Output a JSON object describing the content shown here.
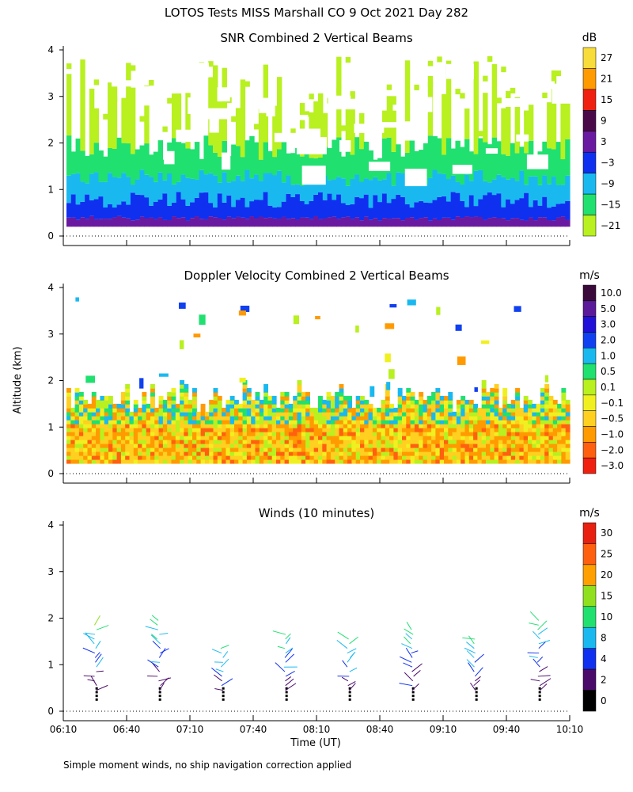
{
  "header": {
    "title": "LOTOS Tests MISS Marshall CO   9 Oct 2021 Day 282",
    "ylabel": "Altitude (km)",
    "xlabel": "Time (UT)",
    "footnote": "Simple moment winds, no ship navigation correction applied"
  },
  "chart_data": [
    {
      "type": "heatmap",
      "title": "SNR Combined 2 Vertical Beams",
      "xlabel": "Time (UT)",
      "ylabel": "Altitude (km)",
      "x_ticks": [
        "06:10",
        "06:40",
        "07:10",
        "07:40",
        "08:10",
        "08:40",
        "09:10",
        "09:40",
        "10:10"
      ],
      "y_ticks": [
        "0",
        "1",
        "2",
        "3",
        "4"
      ],
      "ylim": [
        0,
        4
      ],
      "colorbar": {
        "unit": "dB",
        "ticks": [
          "27",
          "21",
          "15",
          "9",
          "3",
          "−3",
          "−9",
          "−15",
          "−21"
        ],
        "colors": [
          "#f7dc3a",
          "#ff9a00",
          "#f02010",
          "#4a0a4a",
          "#6a1aa0",
          "#1030f0",
          "#19b9f0",
          "#20e070",
          "#b8f020"
        ]
      },
      "layers": [
        {
          "name": "lowest",
          "altitude_km_top": 0.4,
          "level": "3"
        },
        {
          "name": "second",
          "altitude_km_top": 0.8,
          "level": "−3"
        },
        {
          "name": "third",
          "altitude_km_top": 1.3,
          "level": "−9"
        },
        {
          "name": "fourth",
          "altitude_km_top": 2.0,
          "level": "−15"
        },
        {
          "name": "top",
          "altitude_km_top": 4.0,
          "level": "−21"
        }
      ]
    },
    {
      "type": "heatmap",
      "title": "Doppler Velocity Combined 2 Vertical Beams",
      "xlabel": "Time (UT)",
      "ylabel": "Altitude (km)",
      "x_ticks": [
        "06:10",
        "06:40",
        "07:10",
        "07:40",
        "08:10",
        "08:40",
        "09:10",
        "09:40",
        "10:10"
      ],
      "y_ticks": [
        "0",
        "1",
        "2",
        "3",
        "4"
      ],
      "ylim": [
        0,
        4
      ],
      "colorbar": {
        "unit": "m/s",
        "ticks": [
          "10.0",
          "5.0",
          "3.0",
          "2.0",
          "1.0",
          "0.5",
          "0.1",
          "−0.1",
          "−0.5",
          "−1.0",
          "−2.0",
          "−3.0"
        ],
        "colors": [
          "#3a0a3a",
          "#5a1a9a",
          "#2010d8",
          "#1040f0",
          "#19b9f0",
          "#20e070",
          "#b8f020",
          "#f0f020",
          "#ffd020",
          "#ff9a00",
          "#ff6010",
          "#f02010"
        ]
      }
    },
    {
      "type": "scatter",
      "title": "Winds (10 minutes)",
      "xlabel": "Time (UT)",
      "ylabel": "Altitude (km)",
      "x_ticks": [
        "06:10",
        "06:40",
        "07:10",
        "07:40",
        "08:10",
        "08:40",
        "09:10",
        "09:40",
        "10:10"
      ],
      "y_ticks": [
        "0",
        "1",
        "2",
        "3",
        "4"
      ],
      "ylim": [
        0,
        4
      ],
      "profile_times": [
        "06:30",
        "07:00",
        "07:30",
        "08:00",
        "08:30",
        "09:00",
        "09:30",
        "10:00"
      ],
      "profile_tops_km": [
        1.9,
        2.0,
        1.4,
        1.7,
        1.6,
        1.8,
        1.6,
        2.0
      ],
      "colorbar": {
        "unit": "m/s",
        "ticks": [
          "30",
          "25",
          "20",
          "15",
          "10",
          "8",
          "4",
          "2",
          "0"
        ],
        "colors": [
          "#e82010",
          "#ff6010",
          "#ffa000",
          "#90e020",
          "#20e070",
          "#19b9f0",
          "#1030f0",
          "#4a0a6a",
          "#000000"
        ]
      }
    }
  ]
}
